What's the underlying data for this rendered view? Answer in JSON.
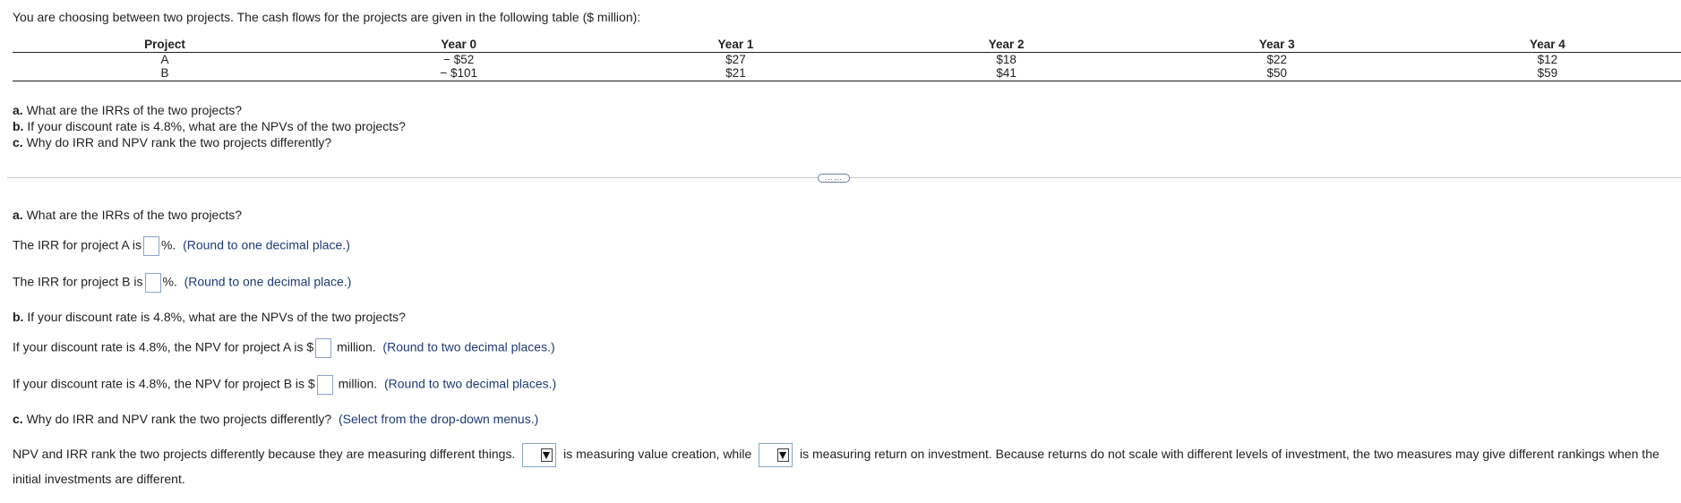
{
  "intro": "You are choosing between two projects. The cash flows for the projects are given in the following table ($ million):",
  "table": {
    "headers": [
      "Project",
      "Year 0",
      "Year 1",
      "Year 2",
      "Year 3",
      "Year 4"
    ],
    "rows": [
      [
        "A",
        "− $52",
        "$27",
        "$18",
        "$22",
        "$12"
      ],
      [
        "B",
        "− $101",
        "$21",
        "$41",
        "$50",
        "$59"
      ]
    ]
  },
  "questions": {
    "a_label": "a.",
    "a_text": " What are the IRRs of the two projects?",
    "b_label": "b.",
    "b_text": " If your discount rate is 4.8%, what are the NPVs of the two projects?",
    "c_label": "c.",
    "c_text": " Why do IRR and NPV rank the two projects differently?"
  },
  "more_label": "……",
  "part_a": {
    "label": "a.",
    "heading": " What are the IRRs of the two projects?",
    "irr_a_prefix": "The IRR for project A is",
    "irr_b_prefix": "The IRR for project B is",
    "irr_suffix": "%.",
    "irr_hint": "(Round to one decimal place.)"
  },
  "part_b": {
    "label": "b.",
    "heading": " If your discount rate is 4.8%, what are the NPVs of the two projects?",
    "npv_a_prefix": "If your discount rate is 4.8%, the NPV for project A is $",
    "npv_b_prefix": "If your discount rate is 4.8%, the NPV for project B is $",
    "npv_suffix": "million.",
    "npv_hint": "(Round to two decimal places.)"
  },
  "part_c": {
    "label": "c.",
    "heading": " Why do IRR and NPV rank the two projects differently?",
    "hint": "(Select from the drop-down menus.)",
    "text_1": "NPV and IRR rank the two projects differently because they are measuring different things.",
    "text_2": "is measuring value creation, while",
    "text_3": "is measuring return on investment. Because returns do not scale with different levels of investment, the two measures may give different rankings when the initial investments are different."
  }
}
